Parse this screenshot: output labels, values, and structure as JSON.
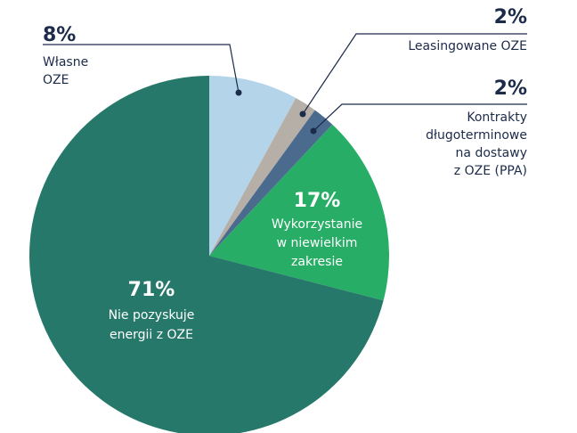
{
  "chart_data": {
    "type": "pie",
    "categories": [
      [
        "Własne",
        "OZE"
      ],
      [
        "Leasingowane OZE"
      ],
      [
        "Kontrakty",
        "długoterminowe",
        "na dostawy",
        "z OZE (PPA)"
      ],
      [
        "Wykorzystanie",
        "w niewielkim",
        "zakresie"
      ],
      [
        "Nie pozyskuje",
        "energii z OZE"
      ]
    ],
    "values": [
      8,
      2,
      2,
      17,
      71
    ],
    "value_labels": [
      "8%",
      "2%",
      "2%",
      "17%",
      "71%"
    ],
    "colors": [
      "#b4d4ea",
      "#b6afa7",
      "#4b6b8e",
      "#27ad66",
      "#26796a"
    ]
  }
}
